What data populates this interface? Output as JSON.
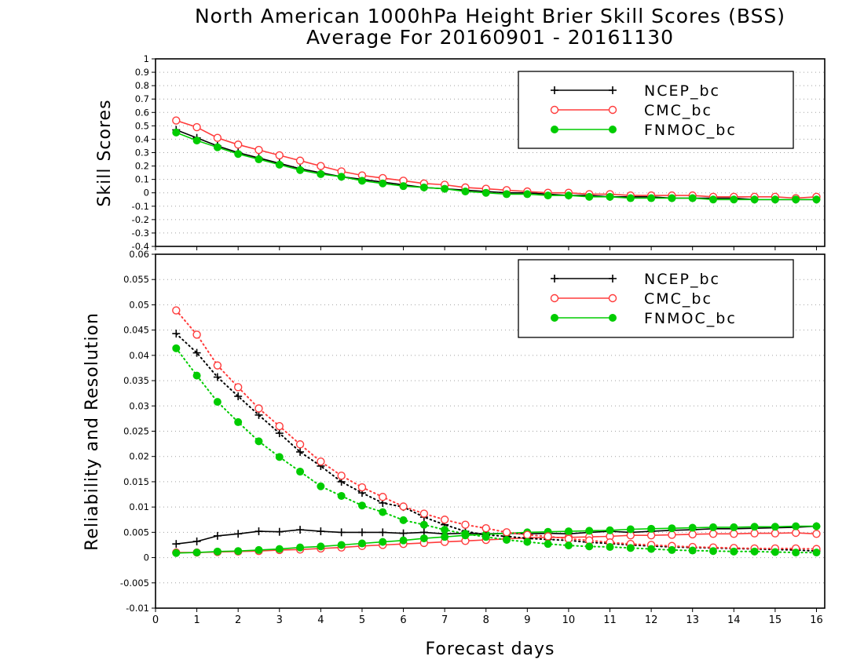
{
  "chart_data": [
    {
      "type": "line",
      "title": "North American 1000hPa Height Brier Skill Scores (BSS)",
      "subtitle": "Average For 20160901 - 20161130",
      "ylabel": "Skill Scores",
      "xlim": [
        0,
        16.2
      ],
      "ylim": [
        -0.4,
        1
      ],
      "yticks": [
        -0.4,
        -0.3,
        -0.2,
        -0.1,
        0,
        0.1,
        0.2,
        0.3,
        0.4,
        0.5,
        0.6,
        0.7,
        0.8,
        0.9,
        1
      ],
      "ytick_labels": [
        "-0.4",
        "-0.3",
        "-0.2",
        "-0.1",
        "0",
        "0.1",
        "0.2",
        "0.3",
        "0.4",
        "0.5",
        "0.6",
        "0.7",
        "0.8",
        "0.9",
        "1"
      ],
      "grid": true,
      "legend_position": "top-right",
      "x": [
        0.5,
        1,
        1.5,
        2,
        2.5,
        3,
        3.5,
        4,
        4.5,
        5,
        5.5,
        6,
        6.5,
        7,
        7.5,
        8,
        8.5,
        9,
        9.5,
        10,
        10.5,
        11,
        11.5,
        12,
        12.5,
        13,
        13.5,
        14,
        14.5,
        15,
        15.5,
        16
      ],
      "series": [
        {
          "name": "NCEP_bc",
          "color": "#000000",
          "marker": "plus",
          "style": "solid",
          "values": [
            0.47,
            0.41,
            0.35,
            0.3,
            0.26,
            0.22,
            0.18,
            0.15,
            0.12,
            0.1,
            0.08,
            0.06,
            0.04,
            0.03,
            0.02,
            0.01,
            0.0,
            0.0,
            -0.01,
            -0.02,
            -0.02,
            -0.03,
            -0.03,
            -0.03,
            -0.04,
            -0.04,
            -0.04,
            -0.04,
            -0.05,
            -0.05,
            -0.05,
            -0.05
          ]
        },
        {
          "name": "CMC_bc",
          "color": "#ff3b3b",
          "marker": "open-circle",
          "style": "solid",
          "values": [
            0.54,
            0.49,
            0.41,
            0.36,
            0.32,
            0.28,
            0.24,
            0.2,
            0.16,
            0.13,
            0.11,
            0.09,
            0.07,
            0.06,
            0.04,
            0.03,
            0.02,
            0.01,
            0.0,
            0.0,
            -0.01,
            -0.01,
            -0.02,
            -0.02,
            -0.02,
            -0.02,
            -0.03,
            -0.03,
            -0.03,
            -0.03,
            -0.04,
            -0.03
          ]
        },
        {
          "name": "FNMOC_bc",
          "color": "#00cc00",
          "marker": "filled-circle",
          "style": "solid",
          "values": [
            0.45,
            0.39,
            0.34,
            0.29,
            0.25,
            0.21,
            0.17,
            0.14,
            0.12,
            0.09,
            0.07,
            0.05,
            0.04,
            0.03,
            0.01,
            0.0,
            -0.01,
            -0.01,
            -0.02,
            -0.02,
            -0.03,
            -0.03,
            -0.04,
            -0.04,
            -0.04,
            -0.04,
            -0.05,
            -0.05,
            -0.05,
            -0.05,
            -0.05,
            -0.05
          ]
        }
      ]
    },
    {
      "type": "line",
      "ylabel": "Reliability and Resolution",
      "xlabel": "Forecast days",
      "xlim": [
        0,
        16.2
      ],
      "xticks": [
        0,
        1,
        2,
        3,
        4,
        5,
        6,
        7,
        8,
        9,
        10,
        11,
        12,
        13,
        14,
        15,
        16
      ],
      "xtick_labels": [
        "0",
        "1",
        "2",
        "3",
        "4",
        "5",
        "6",
        "7",
        "8",
        "9",
        "10",
        "11",
        "12",
        "13",
        "14",
        "15",
        "16"
      ],
      "ylim": [
        -0.01,
        0.06
      ],
      "yticks": [
        -0.01,
        -0.005,
        0,
        0.005,
        0.01,
        0.015,
        0.02,
        0.025,
        0.03,
        0.035,
        0.04,
        0.045,
        0.05,
        0.055,
        0.06
      ],
      "ytick_labels": [
        "-0.01",
        "-0.005",
        "0",
        "0.005",
        "0.01",
        "0.015",
        "0.02",
        "0.025",
        "0.03",
        "0.035",
        "0.04",
        "0.045",
        "0.05",
        "0.055",
        "0.06"
      ],
      "grid": true,
      "legend_position": "top-right",
      "x": [
        0.5,
        1,
        1.5,
        2,
        2.5,
        3,
        3.5,
        4,
        4.5,
        5,
        5.5,
        6,
        6.5,
        7,
        7.5,
        8,
        8.5,
        9,
        9.5,
        10,
        10.5,
        11,
        11.5,
        12,
        12.5,
        13,
        13.5,
        14,
        14.5,
        15,
        15.5,
        16
      ],
      "series": [
        {
          "name": "NCEP_bc",
          "color": "#000000",
          "marker": "plus",
          "style": "solid",
          "values": [
            0.0027,
            0.0032,
            0.0043,
            0.0047,
            0.0052,
            0.0051,
            0.0055,
            0.0052,
            0.005,
            0.005,
            0.005,
            0.0048,
            0.005,
            0.0047,
            0.0048,
            0.0047,
            0.0048,
            0.0047,
            0.0048,
            0.0047,
            0.005,
            0.0052,
            0.005,
            0.0052,
            0.0054,
            0.0055,
            0.0057,
            0.0057,
            0.0058,
            0.0059,
            0.006,
            0.0062
          ]
        },
        {
          "name": "CMC_bc",
          "color": "#ff3b3b",
          "marker": "open-circle",
          "style": "solid",
          "values": [
            0.001,
            0.001,
            0.0011,
            0.0012,
            0.0013,
            0.0015,
            0.0016,
            0.0018,
            0.002,
            0.0023,
            0.0025,
            0.0027,
            0.0029,
            0.0031,
            0.0033,
            0.0035,
            0.0037,
            0.0039,
            0.004,
            0.004,
            0.0041,
            0.0042,
            0.0044,
            0.0044,
            0.0045,
            0.0046,
            0.0047,
            0.0047,
            0.0048,
            0.0048,
            0.0049,
            0.0047
          ]
        },
        {
          "name": "FNMOC_bc",
          "color": "#00cc00",
          "marker": "filled-circle",
          "style": "solid",
          "values": [
            0.0009,
            0.001,
            0.0012,
            0.0013,
            0.0015,
            0.0017,
            0.002,
            0.0022,
            0.0025,
            0.0028,
            0.0031,
            0.0034,
            0.0038,
            0.0041,
            0.0044,
            0.0046,
            0.0048,
            0.005,
            0.0051,
            0.0052,
            0.0053,
            0.0054,
            0.0056,
            0.0057,
            0.0058,
            0.0059,
            0.006,
            0.006,
            0.0061,
            0.0061,
            0.0062,
            0.0062
          ]
        },
        {
          "name": "",
          "color": "#000000",
          "marker": "plus",
          "style": "dotted",
          "values": [
            0.0443,
            0.0405,
            0.0357,
            0.0319,
            0.0282,
            0.0246,
            0.0209,
            0.0181,
            0.015,
            0.0128,
            0.0108,
            0.01,
            0.008,
            0.0065,
            0.0052,
            0.0045,
            0.0042,
            0.0038,
            0.0036,
            0.0034,
            0.003,
            0.0028,
            0.0025,
            0.0023,
            0.0021,
            0.002,
            0.0019,
            0.0018,
            0.0017,
            0.0016,
            0.0015,
            0.0013
          ]
        },
        {
          "name": "",
          "color": "#ff3b3b",
          "marker": "open-circle",
          "style": "dotted",
          "values": [
            0.0489,
            0.0441,
            0.038,
            0.0337,
            0.0295,
            0.026,
            0.0224,
            0.019,
            0.0162,
            0.0139,
            0.012,
            0.0101,
            0.0087,
            0.0075,
            0.0065,
            0.0058,
            0.005,
            0.0045,
            0.0042,
            0.0037,
            0.0034,
            0.003,
            0.0027,
            0.0025,
            0.0023,
            0.0021,
            0.002,
            0.0019,
            0.0018,
            0.0018,
            0.0018,
            0.0017
          ]
        },
        {
          "name": "",
          "color": "#00cc00",
          "marker": "filled-circle",
          "style": "dotted",
          "values": [
            0.0414,
            0.036,
            0.0308,
            0.0268,
            0.023,
            0.0199,
            0.017,
            0.0141,
            0.0122,
            0.0103,
            0.009,
            0.0074,
            0.0065,
            0.0055,
            0.0047,
            0.0041,
            0.0035,
            0.0031,
            0.0027,
            0.0024,
            0.0022,
            0.0021,
            0.0019,
            0.0017,
            0.0015,
            0.0014,
            0.0013,
            0.0012,
            0.0012,
            0.0011,
            0.001,
            0.001
          ]
        }
      ]
    }
  ]
}
